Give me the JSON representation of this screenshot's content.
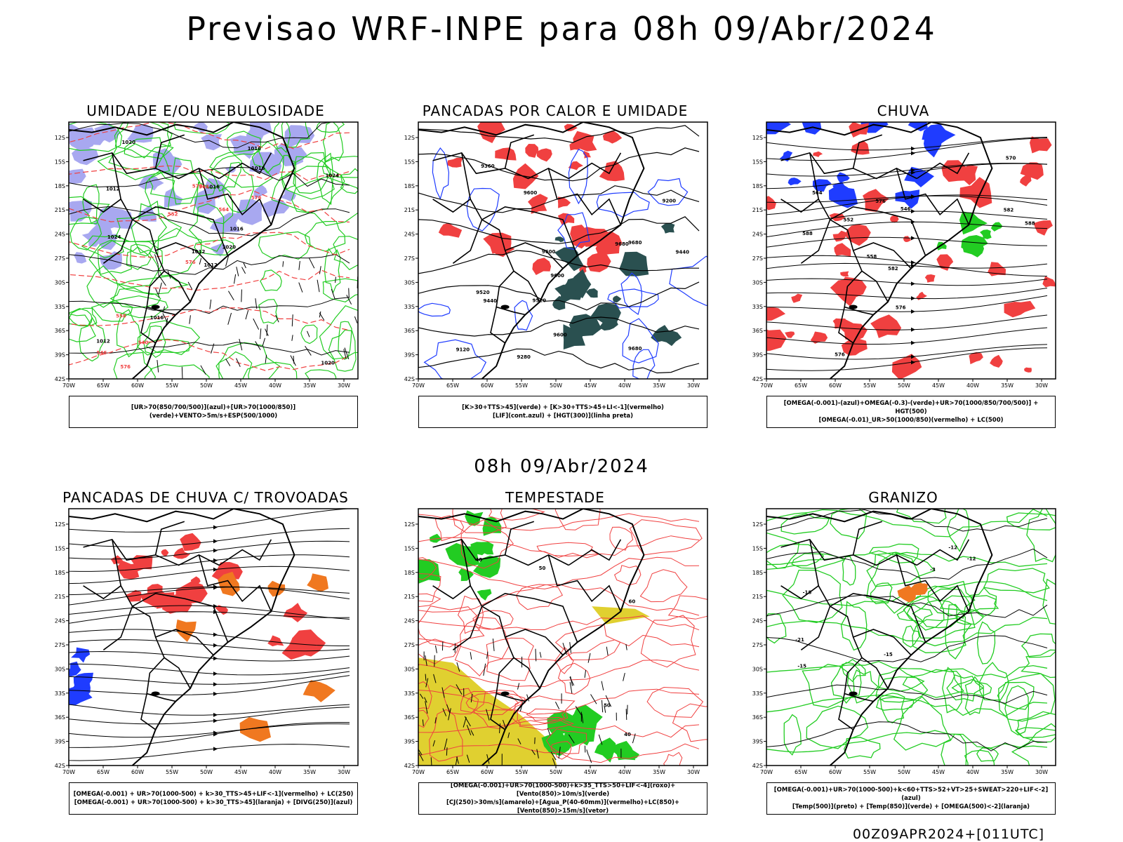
{
  "title": "Previsao WRF-INPE  para 08h 09/Abr/2024",
  "subtitle": "08h 09/Abr/2024",
  "footer": "00Z09APR2024+[011UTC]",
  "axes": {
    "lat_labels": [
      "12S",
      "15S",
      "18S",
      "21S",
      "24S",
      "27S",
      "30S",
      "33S",
      "36S",
      "39S",
      "42S"
    ],
    "lon_labels": [
      "70W",
      "65W",
      "60W",
      "55W",
      "50W",
      "45W",
      "40W",
      "35W",
      "30W"
    ]
  },
  "colors": {
    "blue": "#1f3cff",
    "green": "#22cc22",
    "red": "#f04040",
    "orange": "#f07820",
    "yellow": "#e0d030",
    "lavender": "#a8a8f0",
    "darkteal": "#2a5050"
  },
  "panels": [
    {
      "title": "UMIDADE E/OU NEBULOSIDADE",
      "legend": [
        "[UR>70(850/700/500)](azul)+[UR>70(1000/850)](verde)+VENTO>5m/s+ESP(500/1000)"
      ],
      "labels": [
        "1012",
        "1012",
        "1012",
        "1012",
        "1016",
        "1016",
        "1016",
        "1016",
        "1016",
        "1020",
        "1020",
        "1020",
        "1024",
        "1024",
        "576",
        "576",
        "576",
        "570",
        "564",
        "558",
        "552",
        "546",
        "540",
        "564"
      ]
    },
    {
      "title": "PANCADAS POR CALOR E UMIDADE",
      "legend": [
        "[K>30+TTS>45](verde) + [K>30+TTS>45+LI<-1](vermelho)",
        "[LIF](cont.azul) + [HGT(300)](linha preta)"
      ],
      "labels": [
        "9680",
        "9680",
        "9680",
        "9600",
        "9600",
        "9600",
        "9600",
        "9520",
        "9520",
        "9440",
        "9440",
        "9360",
        "9280",
        "9200",
        "9120"
      ]
    },
    {
      "title": "CHUVA",
      "legend": [
        "[OMEGA(-0.001)-(azul)+OMEGA(-0.3)-(verde)+UR>70(1000/850/700/500)] + HGT(500)",
        "[OMEGA(-0.01)_UR>50(1000/850)(vermelho) + LC(500)"
      ],
      "labels": [
        "588",
        "582",
        "588",
        "582",
        "576",
        "576",
        "576",
        "570",
        "564",
        "558",
        "552",
        "546"
      ]
    },
    {
      "title": "PANCADAS DE CHUVA C/ TROVOADAS",
      "legend": [
        "[OMEGA(-0.001) + UR>70(1000-500) + k>30_TTS>45+LIF<-1](vermelho) + LC(250)",
        "[OMEGA(-0.001) + UR>70(1000-500) + k>30_TTS>45](laranja) + [DIVG(250)](azul)"
      ],
      "labels": []
    },
    {
      "title": "TEMPESTADE",
      "legend": [
        "[OMEGA(-0.001)+UR>70(1000-500)+k>35_TTS>50+LIF<-4](roxo)+[Vento(850)>10m/s](verde)",
        "[CJ(250)>30m/s](amarelo)+[Agua_P(40-60mm)](vermelho)+LC(850)+[Vento(850)>15m/s](vetor)"
      ],
      "labels": [
        "50",
        "40",
        "60",
        "50",
        "40"
      ]
    },
    {
      "title": "GRANIZO",
      "legend": [
        "[OMEGA(-0.001)+UR>70(1000-500)+k<60+TTS>52+VT>25+SWEAT>220+LIF<-2](azul)",
        "[Temp(500)](preto) + [Temp(850)](verde) + [OMEGA(500)<-2](laranja)"
      ],
      "labels": [
        "-12",
        "-15",
        "-18",
        "-21",
        "-15",
        "-12",
        "-3"
      ]
    }
  ]
}
